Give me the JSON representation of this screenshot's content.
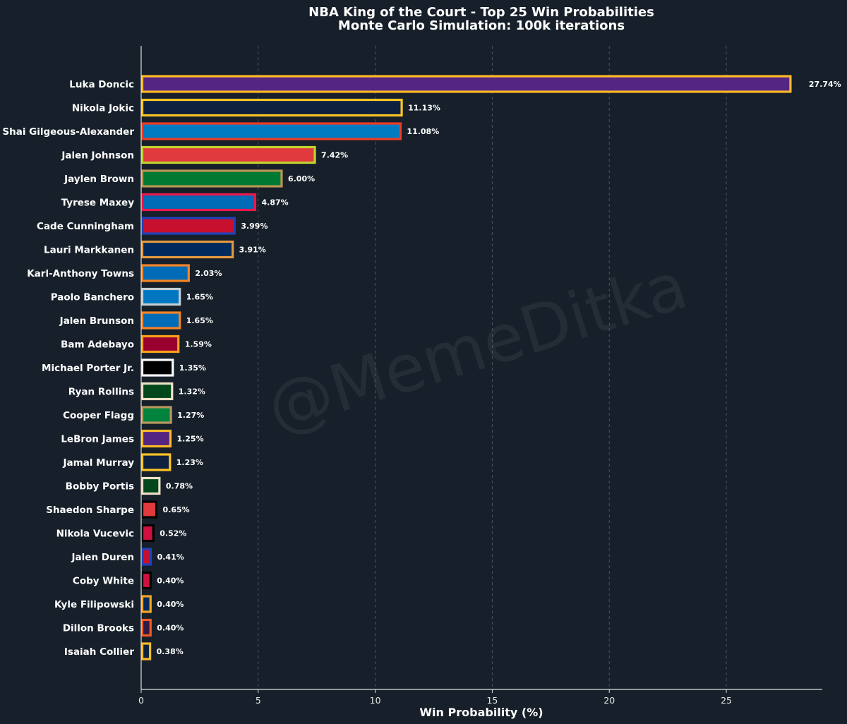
{
  "watermark": "@MemeDitka",
  "chart_data": {
    "type": "bar",
    "orientation": "horizontal",
    "title": "NBA King of the Court - Top 25 Win Probabilities",
    "subtitle": "Monte Carlo Simulation: 100k iterations",
    "xlabel": "Win Probability (%)",
    "ylabel": "",
    "xlim": [
      0,
      29.1
    ],
    "xticks": [
      0,
      5,
      10,
      15,
      20,
      25
    ],
    "grid": "vertical dashed",
    "background": "#17202a",
    "categories": [
      "Luka Doncic",
      "Nikola Jokic",
      "Shai Gilgeous-Alexander",
      "Jalen Johnson",
      "Jaylen Brown",
      "Tyrese Maxey",
      "Cade Cunningham",
      "Lauri Markkanen",
      "Karl-Anthony Towns",
      "Paolo Banchero",
      "Jalen Brunson",
      "Bam Adebayo",
      "Michael Porter Jr.",
      "Ryan Rollins",
      "Cooper Flagg",
      "LeBron James",
      "Jamal Murray",
      "Bobby Portis",
      "Shaedon Sharpe",
      "Nikola Vucevic",
      "Jalen Duren",
      "Coby White",
      "Kyle Filipowski",
      "Dillon Brooks",
      "Isaiah Collier"
    ],
    "values": [
      27.74,
      11.13,
      11.08,
      7.42,
      6.0,
      4.87,
      3.99,
      3.91,
      2.03,
      1.65,
      1.65,
      1.59,
      1.35,
      1.32,
      1.27,
      1.25,
      1.23,
      0.78,
      0.65,
      0.52,
      0.41,
      0.4,
      0.4,
      0.4,
      0.38
    ],
    "value_labels": [
      "27.74%",
      "11.13%",
      "11.08%",
      "7.42%",
      "6.00%",
      "4.87%",
      "3.99%",
      "3.91%",
      "2.03%",
      "1.65%",
      "1.65%",
      "1.59%",
      "1.35%",
      "1.32%",
      "1.27%",
      "1.25%",
      "1.23%",
      "0.78%",
      "0.65%",
      "0.52%",
      "0.41%",
      "0.40%",
      "0.40%",
      "0.40%",
      "0.38%"
    ],
    "fill_colors": [
      "#552583",
      "#0e2240",
      "#007ac1",
      "#e03a3e",
      "#007a33",
      "#006bb6",
      "#c8102e",
      "#002b5c",
      "#006bb6",
      "#0077c0",
      "#006bb6",
      "#98002e",
      "#000000",
      "#00471b",
      "#00843d",
      "#552583",
      "#0e2240",
      "#00471b",
      "#e03a3e",
      "#ce1141",
      "#c8102e",
      "#ce1141",
      "#002b5c",
      "#2e1a47",
      "#0e2240"
    ],
    "edge_colors": [
      "#fdb927",
      "#fec524",
      "#ef3b24",
      "#c1d32f",
      "#ba9653",
      "#ed174c",
      "#1d42ba",
      "#e39940",
      "#f58426",
      "#c4ced4",
      "#f58426",
      "#f9a01b",
      "#ffffff",
      "#eee1c6",
      "#b8975f",
      "#fdb927",
      "#fec524",
      "#eee1c6",
      "#000000",
      "#000000",
      "#1d42ba",
      "#000000",
      "#f5a623",
      "#f15a24",
      "#fdb927"
    ]
  }
}
